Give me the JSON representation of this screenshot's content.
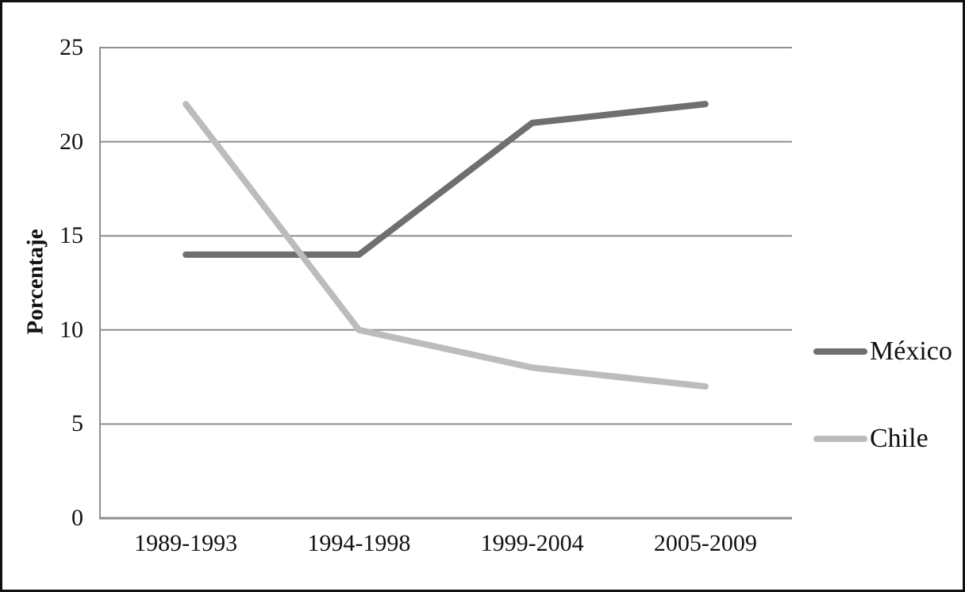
{
  "chart_data": {
    "type": "line",
    "categories": [
      "1989-1993",
      "1994-1998",
      "1999-2004",
      "2005-2009"
    ],
    "series": [
      {
        "name": "México",
        "values": [
          14,
          14,
          21,
          22
        ],
        "color": "#6f6f6f"
      },
      {
        "name": "Chile",
        "values": [
          22,
          10,
          8,
          7
        ],
        "color": "#bcbcbc"
      }
    ],
    "title": "",
    "xlabel": "",
    "ylabel": "Porcentaje",
    "ylim": [
      0,
      25
    ],
    "ytick_step": 5,
    "grid": true,
    "legend_position": "right",
    "axis_color": "#8e8e8e",
    "tick_label_color": "#111111"
  }
}
